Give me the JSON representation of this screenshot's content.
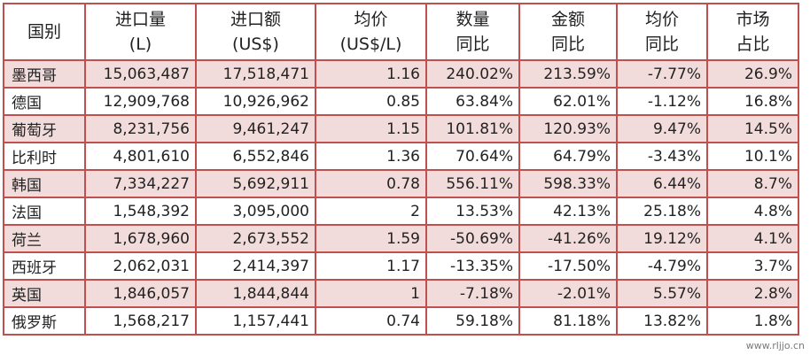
{
  "headers": [
    {
      "line1": "国别",
      "line2": ""
    },
    {
      "line1": "进口量",
      "line2": "(L)"
    },
    {
      "line1": "进口额",
      "line2": "(US$)"
    },
    {
      "line1": "均价",
      "line2": "(US$/L)"
    },
    {
      "line1": "数量",
      "line2": "同比"
    },
    {
      "line1": "金额",
      "line2": "同比"
    },
    {
      "line1": "均价",
      "line2": "同比"
    },
    {
      "line1": "市场",
      "line2": "占比"
    }
  ],
  "rows": [
    [
      "墨西哥",
      "15,063,487",
      "17,518,471",
      "1.16",
      "240.02%",
      "213.59%",
      "-7.77%",
      "26.9%"
    ],
    [
      "德国",
      "12,909,768",
      "10,926,962",
      "0.85",
      "63.84%",
      "62.01%",
      "-1.12%",
      "16.8%"
    ],
    [
      "葡萄牙",
      "8,231,756",
      "9,461,247",
      "1.15",
      "101.81%",
      "120.93%",
      "9.47%",
      "14.5%"
    ],
    [
      "比利时",
      "4,801,610",
      "6,552,846",
      "1.36",
      "70.64%",
      "64.79%",
      "-3.43%",
      "10.1%"
    ],
    [
      "韩国",
      "7,334,227",
      "5,692,911",
      "0.78",
      "556.11%",
      "598.33%",
      "6.44%",
      "8.7%"
    ],
    [
      "法国",
      "1,548,392",
      "3,095,000",
      "2",
      "13.53%",
      "42.13%",
      "25.18%",
      "4.8%"
    ],
    [
      "荷兰",
      "1,678,960",
      "2,673,552",
      "1.59",
      "-50.69%",
      "-41.26%",
      "19.12%",
      "4.1%"
    ],
    [
      "西班牙",
      "2,062,031",
      "2,414,397",
      "1.17",
      "-13.35%",
      "-17.50%",
      "-4.79%",
      "3.7%"
    ],
    [
      "英国",
      "1,846,057",
      "1,844,844",
      "1",
      "-7.18%",
      "-2.01%",
      "5.57%",
      "2.8%"
    ],
    [
      "俄罗斯",
      "1,568,217",
      "1,157,441",
      "0.74",
      "59.18%",
      "81.18%",
      "13.82%",
      "1.8%"
    ]
  ],
  "watermark": "www.rljjo.cn"
}
